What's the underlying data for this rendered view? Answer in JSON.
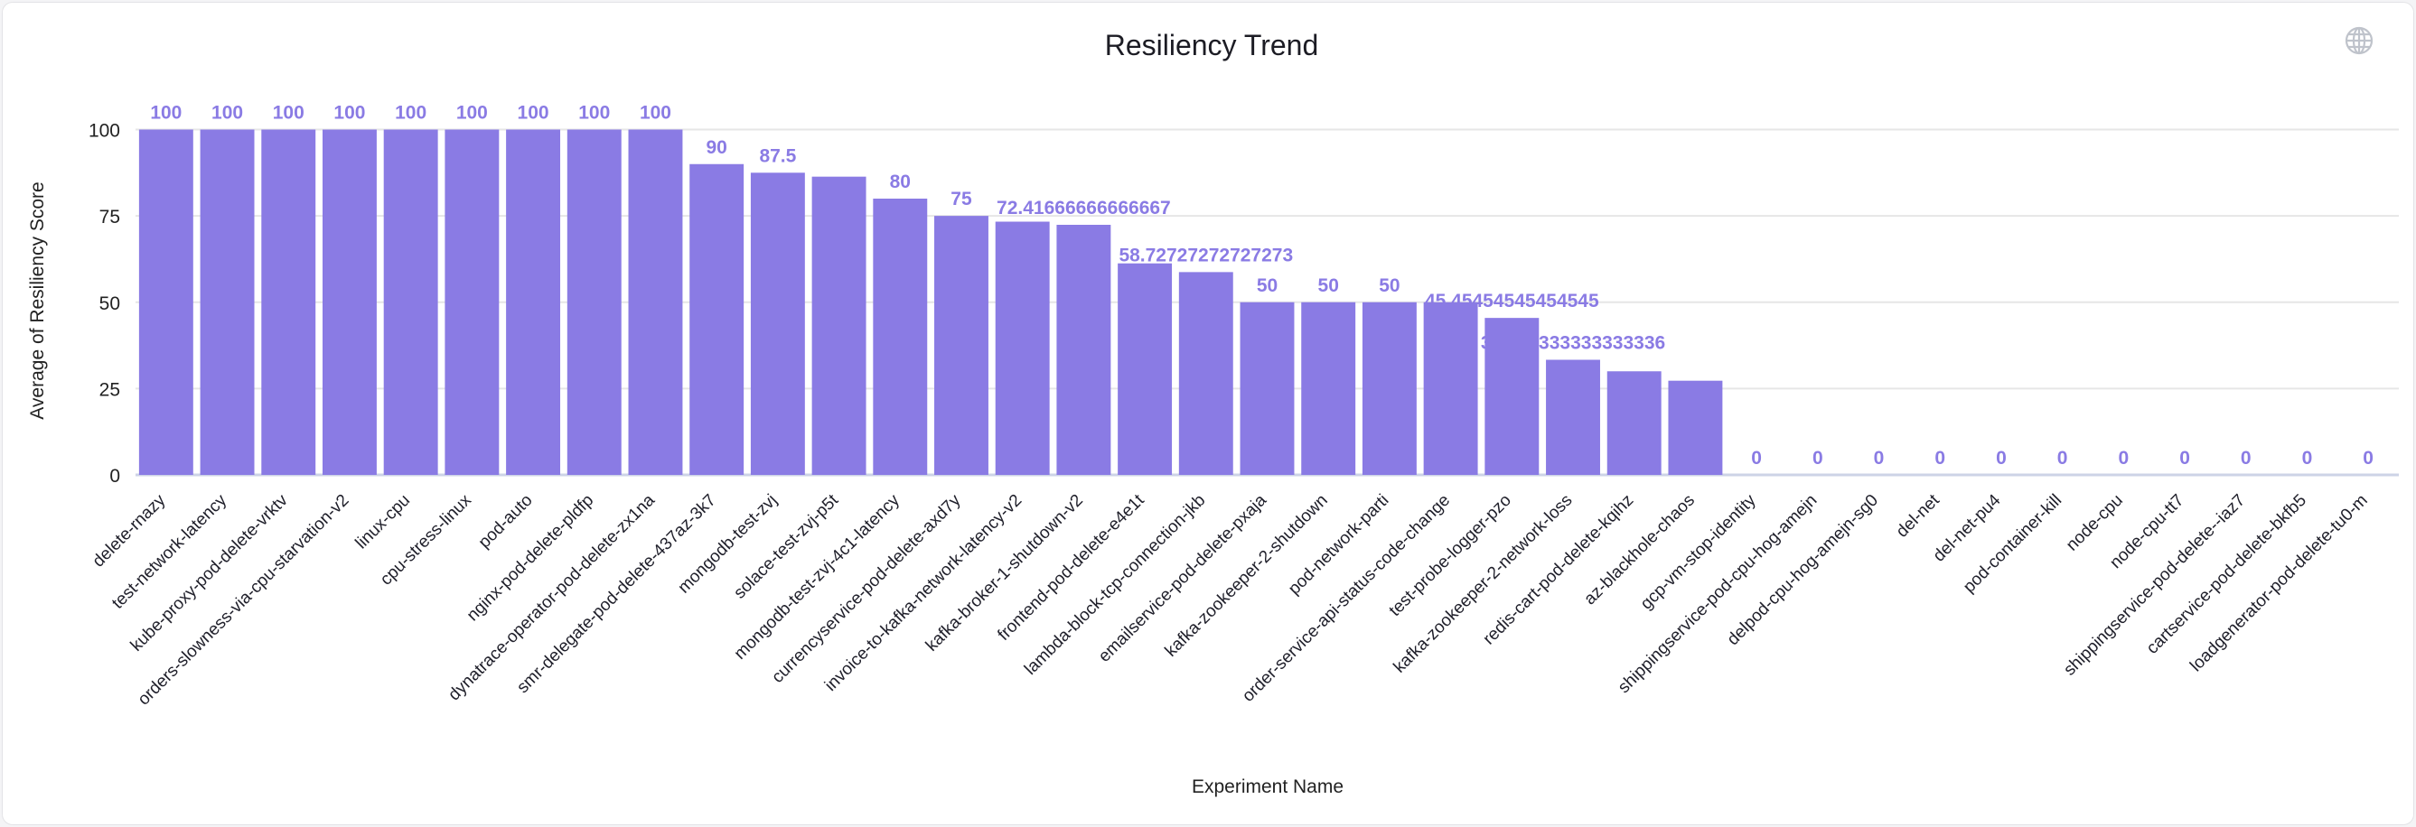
{
  "chart_data": {
    "type": "bar",
    "title": "Resiliency Trend",
    "xlabel": "Experiment Name",
    "ylabel": "Average of Resiliency Score",
    "ylim": [
      0,
      100
    ],
    "yticks": [
      "0",
      "25",
      "50",
      "75",
      "100"
    ],
    "grid": true,
    "bar_color": "#8a7be4",
    "label_color": "#8a7be4",
    "categories": [
      "delete-rnazy",
      "test-network-latency",
      "kube-proxy-pod-delete-vrktv",
      "orders-slowness-via-cpu-starvation-v2",
      "linux-cpu",
      "cpu-stress-linux",
      "pod-auto",
      "nginx-pod-delete-pldfp",
      "dynatrace-operator-pod-delete-zx1na",
      "smr-delegate-pod-delete-437az-3k7",
      "mongodb-test-zvj",
      "solace-test-zvj-p5t",
      "mongodb-test-zvj-4c1-latency",
      "currencyservice-pod-delete-axd7y",
      "invoice-to-kafka-network-latency-v2",
      "kafka-broker-1-shutdown-v2",
      "frontend-pod-delete-e4e1t",
      "lambda-block-tcp-connection-jkb",
      "emailservice-pod-delete-pxaja",
      "kafka-zookeeper-2-shutdown",
      "pod-network-parti",
      "order-service-api-status-code-change",
      "test-probe-logger-pzo",
      "kafka-zookeeper-2-network-loss",
      "redis-cart-pod-delete-kqihz",
      "az-blackhole-chaos",
      "gcp-vm-stop-identity",
      "shippingservice-pod-cpu-hog-amejn",
      "delpod-cpu-hog-amejn-sg0",
      "del-net",
      "del-net-pu4",
      "pod-container-kill",
      "node-cpu",
      "node-cpu-tt7",
      "shippingservice-pod-delete--iaz7",
      "cartservice-pod-delete-bkfb5",
      "loadgenerator-pod-delete-tu0-m"
    ],
    "values": [
      100,
      100,
      100,
      100,
      100,
      100,
      100,
      100,
      100,
      90,
      87.5,
      86.36,
      80,
      75,
      73.33,
      72.41666666666667,
      61.25,
      58.72727272727273,
      50,
      50,
      50,
      50,
      45.45454545454545,
      33.333333333333336,
      30,
      27.27,
      0,
      0,
      0,
      0,
      0,
      0,
      0,
      0,
      0,
      0,
      0
    ],
    "data_labels": [
      "100",
      "100",
      "100",
      "100",
      "100",
      "100",
      "100",
      "100",
      "100",
      "90",
      "87.5",
      "",
      "80",
      "75",
      "",
      "72.41666666666667",
      "",
      "58.72727272727273",
      "50",
      "50",
      "50",
      "",
      "45.45454545454545",
      "33.333333333333336",
      "",
      "",
      "0",
      "0",
      "0",
      "0",
      "0",
      "0",
      "0",
      "0",
      "0",
      "0",
      "0"
    ]
  },
  "toolbar": {
    "icon": "globe-icon"
  }
}
